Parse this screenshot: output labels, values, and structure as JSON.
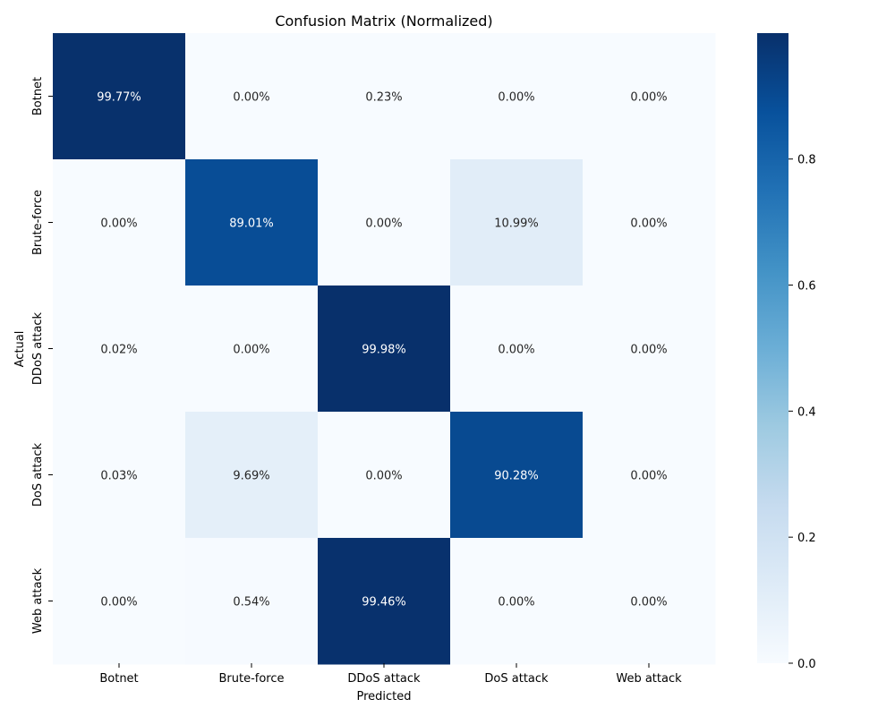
{
  "chart_data": {
    "type": "heatmap",
    "title": "Confusion Matrix (Normalized)",
    "xlabel": "Predicted",
    "ylabel": "Actual",
    "x_categories": [
      "Botnet",
      "Brute-force",
      "DDoS attack",
      "DoS attack",
      "Web attack"
    ],
    "y_categories": [
      "Botnet",
      "Brute-force",
      "DDoS attack",
      "DoS attack",
      "Web attack"
    ],
    "values": [
      [
        0.9977,
        0.0,
        0.0023,
        0.0,
        0.0
      ],
      [
        0.0,
        0.8901,
        0.0,
        0.1099,
        0.0
      ],
      [
        0.0002,
        0.0,
        0.9998,
        0.0,
        0.0
      ],
      [
        0.0003,
        0.0969,
        0.0,
        0.9028,
        0.0
      ],
      [
        0.0,
        0.0054,
        0.9946,
        0.0,
        0.0
      ]
    ],
    "cell_labels": [
      [
        "99.77%",
        "0.00%",
        "0.23%",
        "0.00%",
        "0.00%"
      ],
      [
        "0.00%",
        "89.01%",
        "0.00%",
        "10.99%",
        "0.00%"
      ],
      [
        "0.02%",
        "0.00%",
        "99.98%",
        "0.00%",
        "0.00%"
      ],
      [
        "0.03%",
        "9.69%",
        "0.00%",
        "90.28%",
        "0.00%"
      ],
      [
        "0.00%",
        "0.54%",
        "99.46%",
        "0.00%",
        "0.00%"
      ]
    ],
    "colormap": "Blues",
    "colorbar": {
      "range": [
        0,
        0.9998
      ],
      "ticks": [
        0.0,
        0.2,
        0.4,
        0.6,
        0.8
      ],
      "tick_labels": [
        "0.0",
        "0.2",
        "0.4",
        "0.6",
        "0.8"
      ]
    },
    "grid": false
  }
}
